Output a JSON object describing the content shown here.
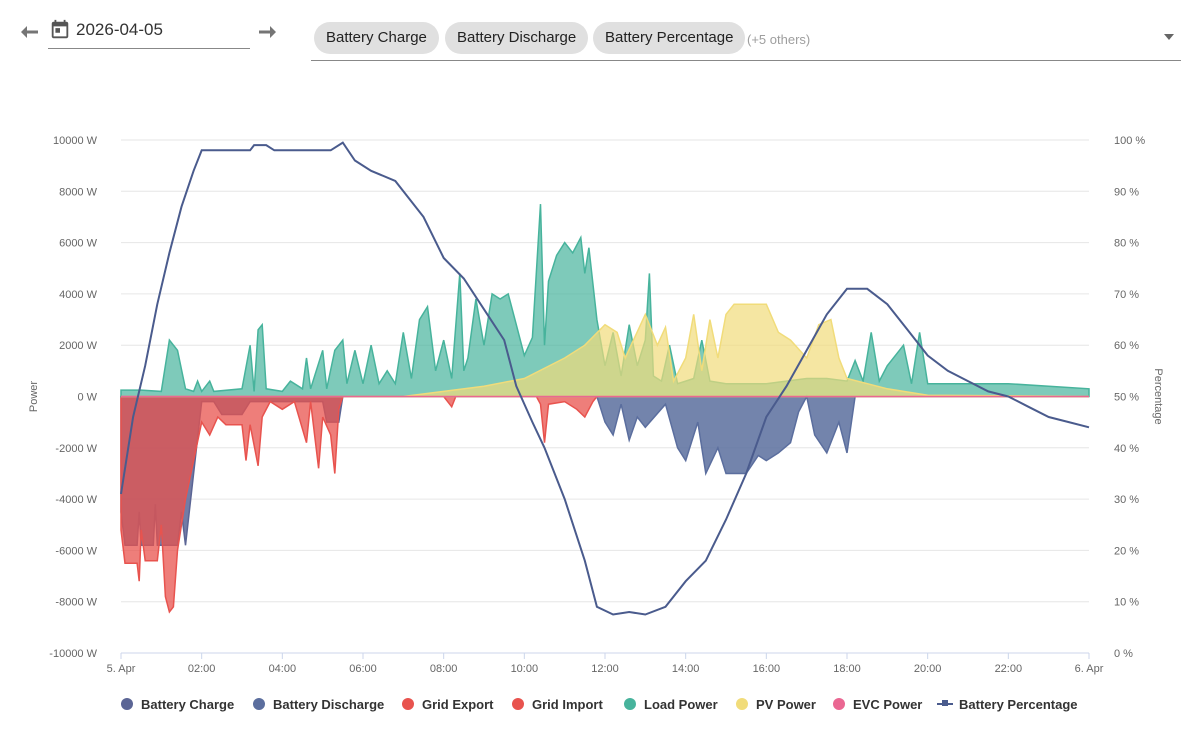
{
  "toolbar": {
    "date_value": "2026-04-05",
    "prev_icon": "arrow-left-icon",
    "next_icon": "arrow-right-icon",
    "calendar_icon": "calendar-icon",
    "chips": [
      "Battery Charge",
      "Battery Discharge",
      "Battery Percentage"
    ],
    "others_label": "(+5 others)",
    "dropdown_icon": "caret-down-icon"
  },
  "chart_data": {
    "type": "area",
    "x_labels": [
      "5. Apr",
      "02:00",
      "04:00",
      "06:00",
      "08:00",
      "10:00",
      "12:00",
      "14:00",
      "16:00",
      "18:00",
      "20:00",
      "22:00",
      "6. Apr"
    ],
    "x_range_hours": [
      0,
      24
    ],
    "y_left": {
      "label": "Power",
      "unit": "W",
      "min": -10000,
      "max": 10000,
      "ticks": [
        -10000,
        -8000,
        -6000,
        -4000,
        -2000,
        0,
        2000,
        4000,
        6000,
        8000,
        10000
      ],
      "tick_labels": [
        "-10000 W",
        "-8000 W",
        "-6000 W",
        "-4000 W",
        "-2000 W",
        "0 W",
        "2000 W",
        "4000 W",
        "6000 W",
        "8000 W",
        "10000 W"
      ]
    },
    "y_right": {
      "label": "Percentage",
      "unit": "%",
      "min": 0,
      "max": 100,
      "ticks": [
        0,
        10,
        20,
        30,
        40,
        50,
        60,
        70,
        80,
        90,
        100
      ],
      "tick_labels": [
        "0 %",
        "10 %",
        "20 %",
        "30 %",
        "40 %",
        "50 %",
        "60 %",
        "70 %",
        "80 %",
        "90 %",
        "100 %"
      ]
    },
    "grid": true,
    "legend_position": "bottom",
    "series": [
      {
        "name": "Battery Charge",
        "color": "#5b6595",
        "axis": "left",
        "points": [
          [
            0,
            -4500
          ],
          [
            0.1,
            -5800
          ],
          [
            0.4,
            -5800
          ],
          [
            0.45,
            -4500
          ],
          [
            0.5,
            -5800
          ],
          [
            0.8,
            -5800
          ],
          [
            0.85,
            -4200
          ],
          [
            0.9,
            -5800
          ],
          [
            1.4,
            -5800
          ],
          [
            1.5,
            -4500
          ],
          [
            1.6,
            -5800
          ],
          [
            1.8,
            -3000
          ],
          [
            2,
            -200
          ],
          [
            2.3,
            -200
          ],
          [
            2.5,
            -700
          ],
          [
            3,
            -700
          ],
          [
            3.2,
            -200
          ],
          [
            5,
            -200
          ],
          [
            5.1,
            -1000
          ],
          [
            5.4,
            -1000
          ],
          [
            5.5,
            0
          ],
          [
            24,
            0
          ]
        ]
      },
      {
        "name": "Battery Discharge",
        "color": "#5b6e9e",
        "axis": "left",
        "points": [
          [
            0,
            0
          ],
          [
            11.8,
            0
          ],
          [
            12,
            -1000
          ],
          [
            12.2,
            -1500
          ],
          [
            12.4,
            -300
          ],
          [
            12.6,
            -1700
          ],
          [
            12.8,
            -800
          ],
          [
            13,
            -1200
          ],
          [
            13.5,
            -300
          ],
          [
            13.8,
            -2000
          ],
          [
            14,
            -2500
          ],
          [
            14.3,
            -1000
          ],
          [
            14.5,
            -3000
          ],
          [
            14.8,
            -2000
          ],
          [
            15,
            -3000
          ],
          [
            15.5,
            -3000
          ],
          [
            15.8,
            -2300
          ],
          [
            16,
            -2500
          ],
          [
            16.3,
            -2200
          ],
          [
            16.6,
            -1800
          ],
          [
            16.8,
            -600
          ],
          [
            17,
            0
          ],
          [
            17.2,
            -1500
          ],
          [
            17.5,
            -2200
          ],
          [
            17.8,
            -1000
          ],
          [
            18,
            -2200
          ],
          [
            18.2,
            0
          ],
          [
            24,
            0
          ]
        ]
      },
      {
        "name": "Grid Export",
        "color": "#e8534e",
        "axis": "left",
        "points": [
          [
            0,
            -5200
          ],
          [
            0.1,
            -6500
          ],
          [
            0.4,
            -6500
          ],
          [
            0.45,
            -7200
          ],
          [
            0.5,
            -5200
          ],
          [
            0.6,
            -6400
          ],
          [
            0.9,
            -6400
          ],
          [
            1,
            -5000
          ],
          [
            1.1,
            -7800
          ],
          [
            1.2,
            -8400
          ],
          [
            1.3,
            -8200
          ],
          [
            1.4,
            -6000
          ],
          [
            1.6,
            -4000
          ],
          [
            1.8,
            -2500
          ],
          [
            2,
            -1000
          ],
          [
            2.2,
            -1500
          ],
          [
            2.4,
            -800
          ],
          [
            2.6,
            -1100
          ],
          [
            3,
            -1100
          ],
          [
            3.1,
            -2500
          ],
          [
            3.2,
            -1100
          ],
          [
            3.4,
            -2700
          ],
          [
            3.5,
            -800
          ],
          [
            3.7,
            -200
          ],
          [
            4,
            -500
          ],
          [
            4.3,
            -200
          ],
          [
            4.6,
            -1800
          ],
          [
            4.7,
            -200
          ],
          [
            4.9,
            -2800
          ],
          [
            5,
            -800
          ],
          [
            5.2,
            -1500
          ],
          [
            5.3,
            -3000
          ],
          [
            5.4,
            -500
          ],
          [
            5.5,
            0
          ],
          [
            8,
            0
          ],
          [
            8.2,
            -400
          ],
          [
            8.3,
            0
          ],
          [
            10.3,
            0
          ],
          [
            10.4,
            -300
          ],
          [
            10.5,
            -1800
          ],
          [
            10.6,
            -300
          ],
          [
            11,
            -200
          ],
          [
            11.3,
            -500
          ],
          [
            11.5,
            -800
          ],
          [
            11.7,
            -200
          ],
          [
            11.8,
            0
          ],
          [
            24,
            0
          ]
        ]
      },
      {
        "name": "Grid Import",
        "color": "#e8534e",
        "axis": "left",
        "points": [
          [
            0,
            0
          ],
          [
            24,
            0
          ]
        ]
      },
      {
        "name": "Load Power",
        "color": "#47b39c",
        "axis": "left",
        "points": [
          [
            0,
            250
          ],
          [
            0.5,
            250
          ],
          [
            1,
            200
          ],
          [
            1.2,
            2200
          ],
          [
            1.4,
            1800
          ],
          [
            1.6,
            300
          ],
          [
            1.8,
            200
          ],
          [
            1.9,
            600
          ],
          [
            2,
            200
          ],
          [
            2.2,
            600
          ],
          [
            2.3,
            200
          ],
          [
            3,
            300
          ],
          [
            3.2,
            2000
          ],
          [
            3.3,
            200
          ],
          [
            3.4,
            2600
          ],
          [
            3.5,
            2800
          ],
          [
            3.6,
            300
          ],
          [
            4,
            200
          ],
          [
            4.2,
            600
          ],
          [
            4.5,
            300
          ],
          [
            4.6,
            1500
          ],
          [
            4.7,
            300
          ],
          [
            5,
            1800
          ],
          [
            5.1,
            300
          ],
          [
            5.3,
            1800
          ],
          [
            5.5,
            2200
          ],
          [
            5.6,
            500
          ],
          [
            5.8,
            1800
          ],
          [
            6,
            500
          ],
          [
            6.2,
            2000
          ],
          [
            6.4,
            500
          ],
          [
            6.6,
            1000
          ],
          [
            6.8,
            500
          ],
          [
            7,
            2500
          ],
          [
            7.2,
            700
          ],
          [
            7.4,
            3000
          ],
          [
            7.6,
            3500
          ],
          [
            7.8,
            1000
          ],
          [
            8,
            2200
          ],
          [
            8.2,
            700
          ],
          [
            8.4,
            4800
          ],
          [
            8.5,
            1000
          ],
          [
            8.6,
            1500
          ],
          [
            8.8,
            3800
          ],
          [
            9,
            2000
          ],
          [
            9.2,
            4000
          ],
          [
            9.4,
            3800
          ],
          [
            9.6,
            4000
          ],
          [
            9.8,
            2800
          ],
          [
            10,
            1600
          ],
          [
            10.2,
            2300
          ],
          [
            10.4,
            7500
          ],
          [
            10.5,
            2000
          ],
          [
            10.6,
            4500
          ],
          [
            10.8,
            5500
          ],
          [
            11,
            6000
          ],
          [
            11.2,
            5600
          ],
          [
            11.4,
            6200
          ],
          [
            11.5,
            4800
          ],
          [
            11.6,
            5800
          ],
          [
            11.8,
            3000
          ],
          [
            12,
            1200
          ],
          [
            12.2,
            2500
          ],
          [
            12.4,
            800
          ],
          [
            12.6,
            2800
          ],
          [
            12.8,
            1200
          ],
          [
            13,
            2200
          ],
          [
            13.1,
            4800
          ],
          [
            13.2,
            800
          ],
          [
            13.4,
            600
          ],
          [
            13.6,
            2000
          ],
          [
            13.8,
            500
          ],
          [
            14,
            600
          ],
          [
            14.2,
            700
          ],
          [
            14.4,
            2200
          ],
          [
            14.6,
            600
          ],
          [
            15,
            500
          ],
          [
            16,
            500
          ],
          [
            17,
            700
          ],
          [
            17.5,
            700
          ],
          [
            18,
            600
          ],
          [
            18.2,
            1400
          ],
          [
            18.4,
            600
          ],
          [
            18.6,
            2500
          ],
          [
            18.8,
            600
          ],
          [
            19,
            1200
          ],
          [
            19.4,
            2000
          ],
          [
            19.6,
            500
          ],
          [
            19.8,
            2500
          ],
          [
            20,
            500
          ],
          [
            22,
            500
          ],
          [
            24,
            300
          ]
        ]
      },
      {
        "name": "PV Power",
        "color": "#f1dc7a",
        "axis": "left",
        "points": [
          [
            0,
            0
          ],
          [
            7,
            0
          ],
          [
            8,
            200
          ],
          [
            9,
            400
          ],
          [
            10,
            700
          ],
          [
            11,
            1500
          ],
          [
            11.5,
            2000
          ],
          [
            12,
            2800
          ],
          [
            12.3,
            2500
          ],
          [
            12.5,
            1500
          ],
          [
            13,
            3200
          ],
          [
            13.3,
            2000
          ],
          [
            13.5,
            2700
          ],
          [
            13.7,
            600
          ],
          [
            14,
            1500
          ],
          [
            14.2,
            3200
          ],
          [
            14.4,
            1000
          ],
          [
            14.6,
            3000
          ],
          [
            14.8,
            1500
          ],
          [
            15,
            3200
          ],
          [
            15.2,
            3600
          ],
          [
            16,
            3600
          ],
          [
            16.3,
            2500
          ],
          [
            16.6,
            2200
          ],
          [
            17,
            1500
          ],
          [
            17.3,
            2800
          ],
          [
            17.6,
            3000
          ],
          [
            17.8,
            1500
          ],
          [
            18,
            700
          ],
          [
            19,
            300
          ],
          [
            20,
            50
          ],
          [
            24,
            0
          ]
        ]
      },
      {
        "name": "EVC Power",
        "color": "#ea6792",
        "axis": "left",
        "points": [
          [
            0,
            0
          ],
          [
            24,
            0
          ]
        ]
      },
      {
        "name": "Battery Percentage",
        "color": "#4a5b8d",
        "axis": "right",
        "points": [
          [
            0,
            31
          ],
          [
            0.3,
            46
          ],
          [
            0.6,
            56
          ],
          [
            0.9,
            68
          ],
          [
            1.2,
            78
          ],
          [
            1.5,
            87
          ],
          [
            1.8,
            94
          ],
          [
            2,
            98
          ],
          [
            2.3,
            98
          ],
          [
            2.6,
            98
          ],
          [
            3.2,
            98
          ],
          [
            3.3,
            99
          ],
          [
            3.6,
            99
          ],
          [
            3.8,
            98
          ],
          [
            4,
            98
          ],
          [
            4.5,
            98
          ],
          [
            5,
            98
          ],
          [
            5.2,
            98
          ],
          [
            5.5,
            99.5
          ],
          [
            5.8,
            96
          ],
          [
            6.2,
            94
          ],
          [
            6.8,
            92
          ],
          [
            7.5,
            85
          ],
          [
            8,
            77
          ],
          [
            8.5,
            73
          ],
          [
            9,
            67
          ],
          [
            9.5,
            61
          ],
          [
            9.8,
            52
          ],
          [
            10.2,
            45
          ],
          [
            10.5,
            40
          ],
          [
            11,
            30
          ],
          [
            11.5,
            18
          ],
          [
            11.8,
            9
          ],
          [
            12.2,
            7.5
          ],
          [
            12.6,
            8
          ],
          [
            13,
            7.5
          ],
          [
            13.5,
            9
          ],
          [
            14,
            14
          ],
          [
            14.5,
            18
          ],
          [
            15,
            26
          ],
          [
            15.5,
            35
          ],
          [
            16,
            46
          ],
          [
            16.5,
            52
          ],
          [
            17,
            59
          ],
          [
            17.5,
            66
          ],
          [
            18,
            71
          ],
          [
            18.5,
            71
          ],
          [
            19,
            68
          ],
          [
            19.5,
            63
          ],
          [
            20,
            58
          ],
          [
            20.5,
            55
          ],
          [
            21,
            53
          ],
          [
            21.5,
            51
          ],
          [
            22,
            50
          ],
          [
            22.5,
            48
          ],
          [
            23,
            46
          ],
          [
            23.5,
            45
          ],
          [
            24,
            44
          ]
        ]
      }
    ]
  }
}
